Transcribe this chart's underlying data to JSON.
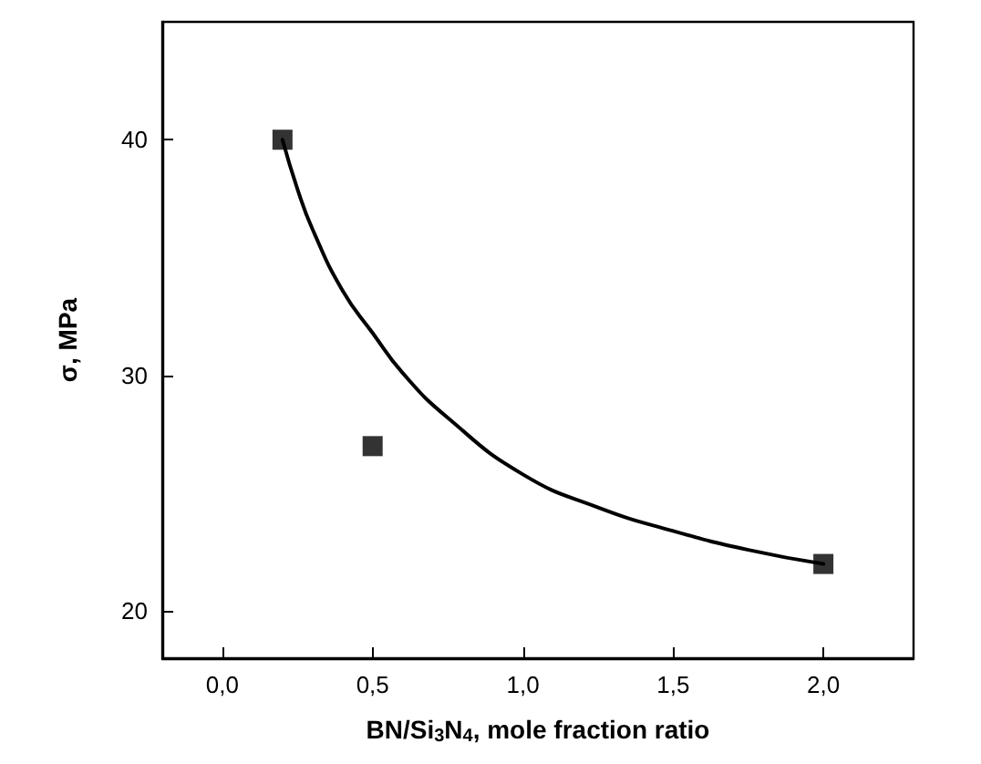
{
  "chart_data": {
    "type": "scatter",
    "xlabel": "BN/Si$_{3}$N$_{4}$, mole fraction ratio",
    "ylabel": "σ, MPa",
    "xlim": [
      -0.2,
      2.3
    ],
    "xticks": [
      {
        "value": 0,
        "label": "0,0"
      },
      {
        "value": 0.5,
        "label": "0,5"
      },
      {
        "value": 1,
        "label": "1,0"
      },
      {
        "value": 1.5,
        "label": "1,5"
      },
      {
        "value": 2,
        "label": "2,0"
      }
    ],
    "ylim": [
      18,
      45
    ],
    "yticks": [
      20,
      30,
      40
    ],
    "series": [
      {
        "color": "#000000",
        "marker": "square",
        "x": [
          0.2,
          0.5,
          2.0
        ],
        "values": [
          40,
          27,
          22
        ]
      },
      {
        "type": "line",
        "color": "#000000",
        "marker": "none",
        "line_style": "solid",
        "x": [
          0.2,
          0.25,
          0.3,
          0.4,
          0.5,
          0.6,
          0.75,
          1.0,
          1.25,
          1.5,
          1.75,
          2.0
        ],
        "values": [
          40,
          37.9,
          36.2,
          33.6,
          31.8,
          30.1,
          28.2,
          25.8,
          24.4,
          23.4,
          22.6,
          22
        ]
      }
    ]
  }
}
